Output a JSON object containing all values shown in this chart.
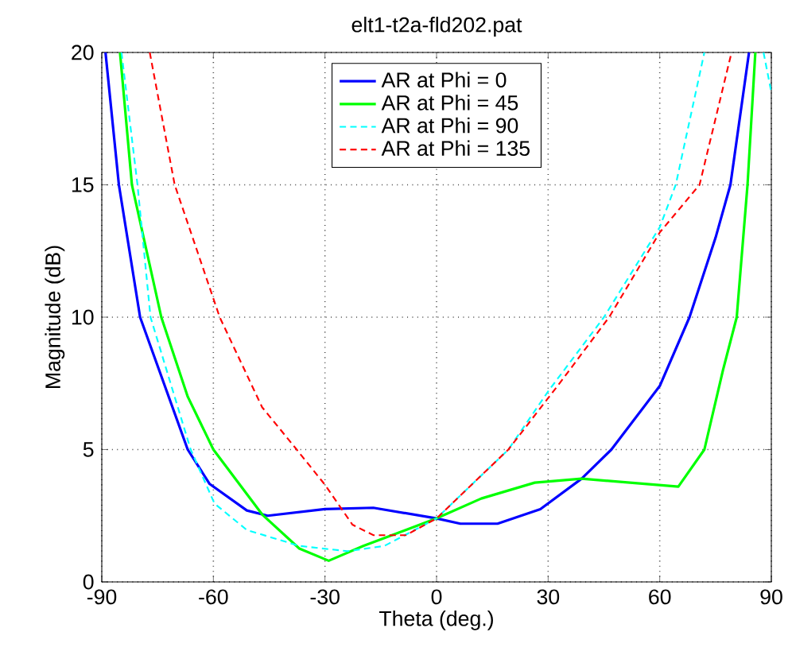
{
  "chart_data": {
    "type": "line",
    "title": "elt1-t2a-fld202.pat",
    "xlabel": "Theta (deg.)",
    "ylabel": "Magnitude (dB)",
    "xlim": [
      -90,
      90
    ],
    "ylim": [
      0,
      20
    ],
    "xticks": [
      -90,
      -60,
      -30,
      0,
      30,
      60,
      90
    ],
    "yticks": [
      0,
      5,
      10,
      15,
      20
    ],
    "grid": true,
    "legend": "top",
    "marker": "none",
    "series": [
      {
        "name": "AR at  Phi = 0",
        "color": "#0000ff",
        "line_style": "solid",
        "x": [
          -89,
          -85.4,
          -79.7,
          -66.9,
          -61,
          -51,
          -45.4,
          -30,
          -17,
          0,
          6.4,
          16.4,
          27.9,
          39,
          47,
          60,
          68,
          75,
          79,
          84
        ],
        "values": [
          20,
          15,
          10,
          5,
          3.7,
          2.7,
          2.5,
          2.75,
          2.8,
          2.4,
          2.2,
          2.2,
          2.75,
          3.9,
          5,
          7.4,
          10,
          13,
          15,
          20
        ]
      },
      {
        "name": "AR at  Phi = 45",
        "color": "#00ff00",
        "line_style": "solid",
        "x": [
          -85.1,
          -81.9,
          -74,
          -66.9,
          -60,
          -46.9,
          -36.9,
          -29,
          -19.7,
          -8.3,
          0,
          12,
          26.4,
          39,
          52,
          65,
          72,
          77,
          80.7,
          83.6,
          85.7
        ],
        "values": [
          20,
          15,
          10,
          7,
          5,
          2.55,
          1.26,
          0.8,
          1.36,
          1.96,
          2.4,
          3.15,
          3.75,
          3.9,
          3.75,
          3.6,
          5,
          8,
          10,
          15,
          20
        ]
      },
      {
        "name": "AR at  Phi = 90",
        "color": "#00ffff",
        "line_style": "dashed",
        "x": [
          -84.7,
          -80.4,
          -76.9,
          -66.1,
          -59.7,
          -51,
          -36.9,
          -24,
          -14,
          0,
          19.3,
          30,
          45,
          60,
          64.3,
          72,
          80,
          87.9,
          90
        ],
        "values": [
          20,
          15,
          10,
          5,
          2.96,
          1.96,
          1.36,
          1.16,
          1.36,
          2.4,
          5,
          7.2,
          10,
          13.4,
          15,
          20,
          null,
          20,
          18.5
        ]
      },
      {
        "name": "AR at  Phi = 135",
        "color": "#ff0000",
        "line_style": "dashed",
        "x": [
          -77.1,
          -70.4,
          -58.3,
          -46.9,
          -37.6,
          -30,
          -22.6,
          -16.9,
          -8.3,
          0,
          19.3,
          33.6,
          46.4,
          60,
          70.7,
          79.3
        ],
        "values": [
          20,
          15,
          10,
          6.6,
          5,
          3.67,
          2.16,
          1.76,
          1.76,
          2.4,
          5,
          7.6,
          10,
          13.2,
          15,
          20
        ]
      }
    ]
  }
}
